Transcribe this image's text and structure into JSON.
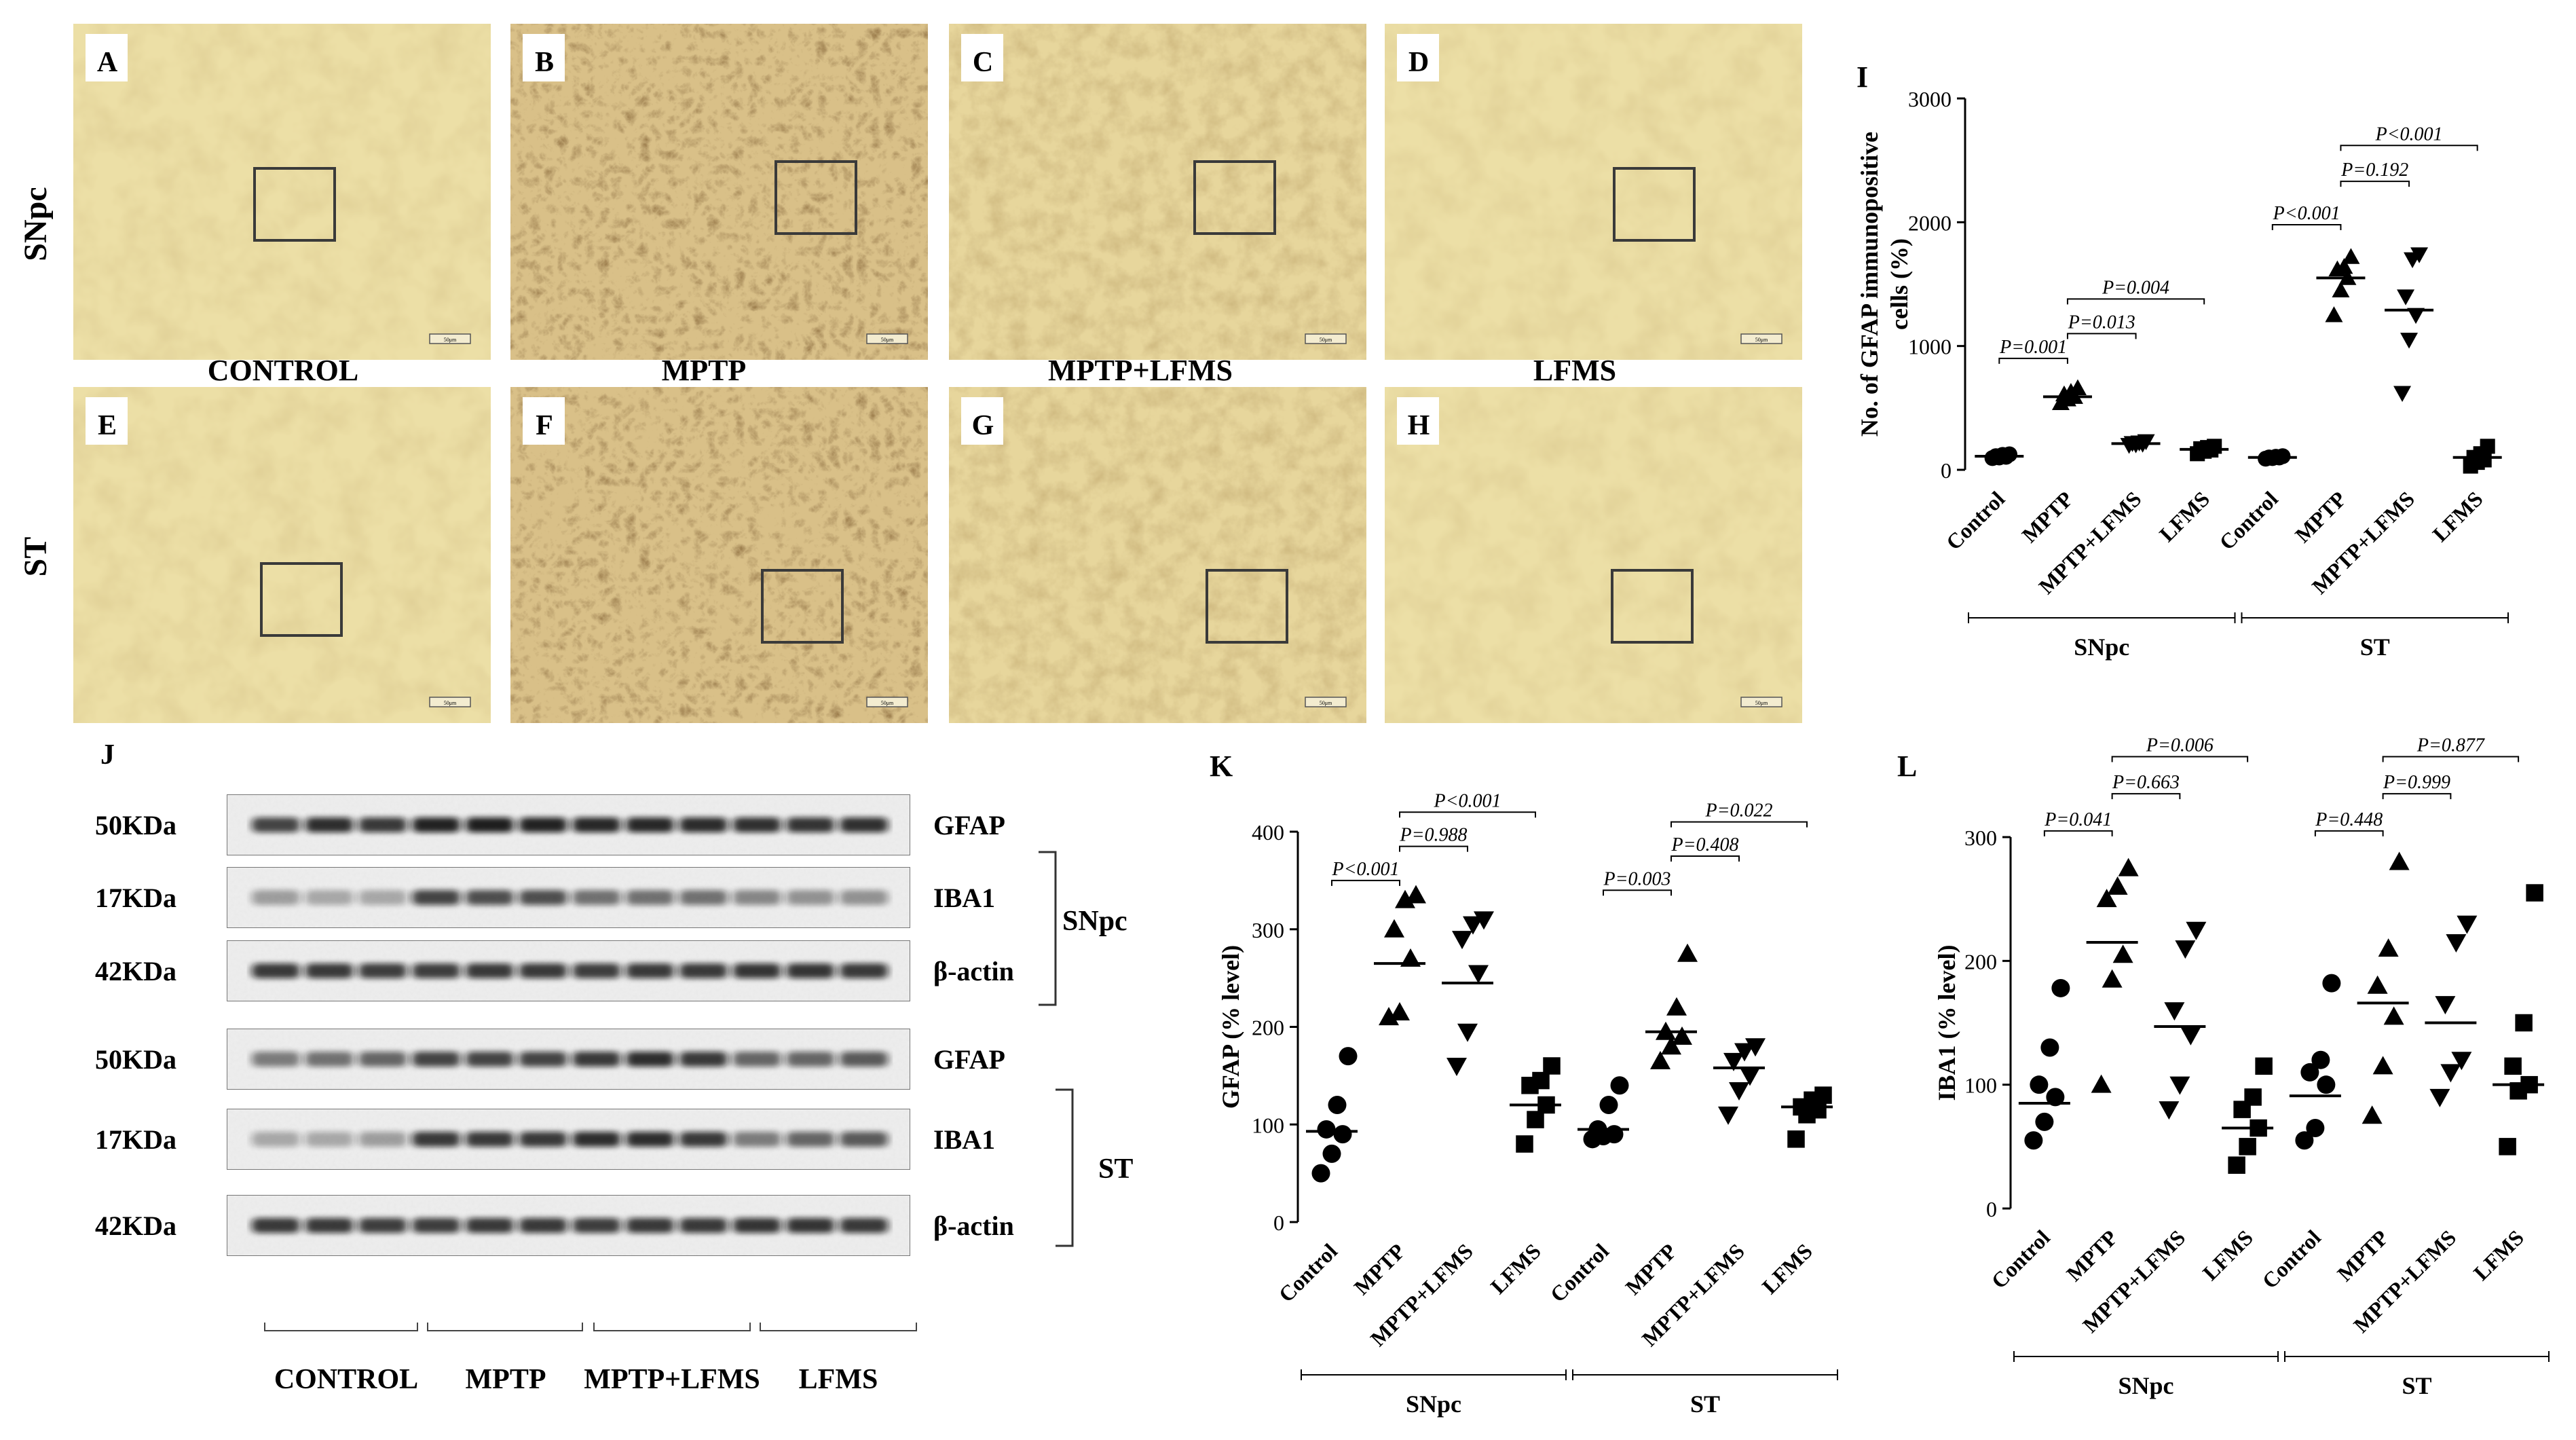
{
  "histology": {
    "panels": [
      {
        "letter": "A",
        "row": "SNpc",
        "condition": "control",
        "intensity": "low"
      },
      {
        "letter": "B",
        "row": "SNpc",
        "condition": "mptp",
        "intensity": "high"
      },
      {
        "letter": "C",
        "row": "SNpc",
        "condition": "mptp_lfms",
        "intensity": "medium"
      },
      {
        "letter": "D",
        "row": "SNpc",
        "condition": "lfms",
        "intensity": "low"
      },
      {
        "letter": "E",
        "row": "ST",
        "condition": "control",
        "intensity": "low"
      },
      {
        "letter": "F",
        "row": "ST",
        "condition": "mptp",
        "intensity": "high"
      },
      {
        "letter": "G",
        "row": "ST",
        "condition": "mptp_lfms",
        "intensity": "medium"
      },
      {
        "letter": "H",
        "row": "ST",
        "condition": "lfms",
        "intensity": "low"
      }
    ],
    "column_labels": [
      "CONTROL",
      "MPTP",
      "MPTP+LFMS",
      "LFMS"
    ],
    "row_labels": [
      "SNpc",
      "ST"
    ],
    "scale_bar_text": "50μm"
  },
  "western": {
    "panel_letter": "J",
    "snpc_block": {
      "region": "SNpc",
      "rows": [
        {
          "kda": "50KDa",
          "protein": "GFAP"
        },
        {
          "kda": "17KDa",
          "protein": "IBA1"
        },
        {
          "kda": "42KDa",
          "protein": "β-actin"
        }
      ]
    },
    "st_block": {
      "region": "ST",
      "rows": [
        {
          "kda": "50KDa",
          "protein": "GFAP"
        },
        {
          "kda": "17KDa",
          "protein": "IBA1"
        },
        {
          "kda": "42KDa",
          "protein": "β-actin"
        }
      ]
    },
    "group_labels": [
      "CONTROL",
      "MPTP",
      "MPTP+LFMS",
      "LFMS"
    ]
  },
  "chart_data": [
    {
      "id": "I",
      "type": "scatter",
      "panel_letter": "I",
      "ylabel": "No. of GFAP immunopositive cells (%)",
      "ylabel_lines": [
        "No. of GFAP immunopositive",
        "cells (%)"
      ],
      "ylim": [
        0,
        3000
      ],
      "yticks": [
        0,
        1000,
        2000,
        3000
      ],
      "categories": [
        "Control",
        "MPTP",
        "MPTP+LFMS",
        "LFMS",
        "Control",
        "MPTP",
        "MPTP+LFMS",
        "LFMS"
      ],
      "regions": [
        "SNpc",
        "ST"
      ],
      "markers": [
        "circle",
        "triangle",
        "triangle-down",
        "square",
        "circle",
        "triangle",
        "triangle-down",
        "square"
      ],
      "points": [
        [
          95,
          100,
          105,
          110,
          120,
          125
        ],
        [
          540,
          570,
          590,
          610,
          630,
          660
        ],
        [
          200,
          205,
          210,
          215,
          220,
          230
        ],
        [
          130,
          150,
          160,
          170,
          180,
          190
        ],
        [
          90,
          95,
          100,
          100,
          105,
          110
        ],
        [
          1250,
          1450,
          1550,
          1620,
          1640,
          1720
        ],
        [
          620,
          1050,
          1250,
          1400,
          1700,
          1740
        ],
        [
          30,
          60,
          80,
          100,
          130,
          190
        ]
      ],
      "means": [
        110,
        590,
        212,
        165,
        100,
        1550,
        1290,
        100
      ],
      "pvalues": [
        {
          "text": "P=0.001",
          "from": 0,
          "to": 1,
          "y": 900
        },
        {
          "text": "P=0.013",
          "from": 1,
          "to": 2,
          "y": 1100
        },
        {
          "text": "P=0.004",
          "from": 1,
          "to": 3,
          "y": 1380
        },
        {
          "text": "P<0.001",
          "from": 4,
          "to": 5,
          "y": 1980
        },
        {
          "text": "P=0.192",
          "from": 5,
          "to": 6,
          "y": 2330
        },
        {
          "text": "P<0.001",
          "from": 5,
          "to": 7,
          "y": 2620
        }
      ]
    },
    {
      "id": "K",
      "type": "scatter",
      "panel_letter": "K",
      "ylabel": "GFAP (% level)",
      "ylabel_lines": [
        "GFAP (% level)"
      ],
      "ylim": [
        0,
        400
      ],
      "yticks": [
        0,
        100,
        200,
        300,
        400
      ],
      "categories": [
        "Control",
        "MPTP",
        "MPTP+LFMS",
        "LFMS",
        "Control",
        "MPTP",
        "MPTP+LFMS",
        "LFMS"
      ],
      "regions": [
        "SNpc",
        "ST"
      ],
      "markers": [
        "circle",
        "triangle",
        "triangle-down",
        "square",
        "circle",
        "triangle",
        "triangle-down",
        "square"
      ],
      "points": [
        [
          50,
          70,
          90,
          95,
          120,
          170
        ],
        [
          210,
          215,
          270,
          300,
          330,
          335
        ],
        [
          160,
          195,
          255,
          290,
          305,
          310
        ],
        [
          80,
          105,
          120,
          140,
          145,
          160
        ],
        [
          85,
          88,
          90,
          95,
          120,
          140
        ],
        [
          165,
          180,
          190,
          195,
          220,
          275
        ],
        [
          110,
          135,
          150,
          165,
          175,
          180
        ],
        [
          85,
          110,
          115,
          118,
          125,
          130
        ]
      ],
      "means": [
        93,
        265,
        245,
        120,
        95,
        195,
        158,
        118
      ],
      "pvalues": [
        {
          "text": "P<0.001",
          "from": 0,
          "to": 1,
          "y": 350
        },
        {
          "text": "P=0.988",
          "from": 1,
          "to": 2,
          "y": 385
        },
        {
          "text": "P<0.001",
          "from": 1,
          "to": 3,
          "y": 420
        },
        {
          "text": "P=0.003",
          "from": 4,
          "to": 5,
          "y": 340
        },
        {
          "text": "P=0.408",
          "from": 5,
          "to": 6,
          "y": 375
        },
        {
          "text": "P=0.022",
          "from": 5,
          "to": 7,
          "y": 410
        }
      ]
    },
    {
      "id": "L",
      "type": "scatter",
      "panel_letter": "L",
      "ylabel": "IBA1 (% level)",
      "ylabel_lines": [
        "IBA1 (% level)"
      ],
      "ylim": [
        0,
        300
      ],
      "yticks": [
        0,
        100,
        200,
        300
      ],
      "categories": [
        "Control",
        "MPTP",
        "MPTP+LFMS",
        "LFMS",
        "Control",
        "MPTP",
        "MPTP+LFMS",
        "LFMS"
      ],
      "regions": [
        "SNpc",
        "ST"
      ],
      "markers": [
        "circle",
        "triangle",
        "triangle-down",
        "square",
        "circle",
        "triangle",
        "triangle-down",
        "square"
      ],
      "points": [
        [
          55,
          70,
          90,
          100,
          130,
          178
        ],
        [
          100,
          185,
          205,
          250,
          260,
          275
        ],
        [
          80,
          100,
          140,
          160,
          210,
          225
        ],
        [
          35,
          50,
          65,
          80,
          90,
          115
        ],
        [
          55,
          65,
          100,
          110,
          120,
          182
        ],
        [
          75,
          115,
          155,
          180,
          210,
          280
        ],
        [
          90,
          110,
          120,
          165,
          215,
          230
        ],
        [
          50,
          95,
          100,
          115,
          150,
          255
        ]
      ],
      "means": [
        85,
        215,
        147,
        65,
        91,
        166,
        150,
        100
      ],
      "pvalues": [
        {
          "text": "P=0.041",
          "from": 0,
          "to": 1,
          "y": 305
        },
        {
          "text": "P=0.663",
          "from": 1,
          "to": 2,
          "y": 335
        },
        {
          "text": "P=0.006",
          "from": 1,
          "to": 3,
          "y": 365
        },
        {
          "text": "P=0.448",
          "from": 4,
          "to": 5,
          "y": 305
        },
        {
          "text": "P=0.999",
          "from": 5,
          "to": 6,
          "y": 335
        },
        {
          "text": "P=0.877",
          "from": 5,
          "to": 7,
          "y": 365
        }
      ]
    }
  ]
}
